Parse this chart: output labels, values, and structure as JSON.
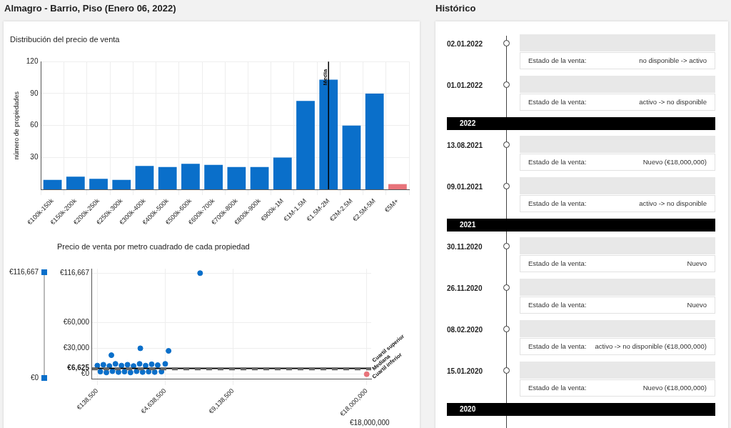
{
  "chart_data": [
    {
      "type": "bar",
      "title": "Distribución del precio de venta",
      "ylabel": "número de propiedades",
      "annotations": [
        "Almagro - Barrio, Piso (Enero 06, 2022)"
      ],
      "categories": [
        "€100k-150k",
        "€150k-200k",
        "€200k-250k",
        "€250k-300k",
        "€300k-400k",
        "€400k-500k",
        "€500k-600k",
        "€600k-700k",
        "€700k-800k",
        "€800k-900k",
        "€900k-1M",
        "€1M-1.5M",
        "€1.5M-2M",
        "€2M-2.5M",
        "€2.5M-5M",
        "€5M+"
      ],
      "values": [
        9,
        12,
        10,
        9,
        22,
        21,
        24,
        23,
        21,
        21,
        30,
        83,
        103,
        60,
        90,
        5
      ],
      "colors": [
        "#0a6fca",
        "#0a6fca",
        "#0a6fca",
        "#0a6fca",
        "#0a6fca",
        "#0a6fca",
        "#0a6fca",
        "#0a6fca",
        "#0a6fca",
        "#0a6fca",
        "#0a6fca",
        "#0a6fca",
        "#0a6fca",
        "#0a6fca",
        "#0a6fca",
        "#e8737a"
      ],
      "ylim": [
        0,
        120
      ],
      "yticks": [
        30,
        60,
        90,
        120
      ],
      "grid": true,
      "ref_lines": [
        {
          "axis": "x",
          "value": "€1.5M-2M",
          "label": "Media",
          "color": "#000000"
        }
      ]
    },
    {
      "type": "scatter",
      "title": "Precio de venta por metro cuadrado de cada propiedad",
      "annotations": [
        "€116,667",
        "€0",
        "€18,000,000"
      ],
      "xlim": [
        -200000,
        18300000
      ],
      "xticks": [
        {
          "value": 138500,
          "label": "€138,500"
        },
        {
          "value": 4638500,
          "label": "€4,638,500"
        },
        {
          "value": 9138500,
          "label": "€9,138,500"
        },
        {
          "value": 18000000,
          "label": "€18,000,000"
        }
      ],
      "ylim": [
        -6000,
        122000
      ],
      "yticks": [
        {
          "value": 0,
          "label": "€0"
        },
        {
          "value": 6625,
          "label": "€6,625"
        },
        {
          "value": 30000,
          "label": "€30,000"
        },
        {
          "value": 60000,
          "label": "€60,000"
        },
        {
          "value": 116667,
          "label": "€116,667"
        }
      ],
      "grid": true,
      "marker": "circle",
      "ref_lines": [
        {
          "axis": "y",
          "value": 7000,
          "label": "Cuartil superior",
          "color": "#333333",
          "line_style": "solid"
        },
        {
          "axis": "y",
          "value": 6625,
          "label": "Mediana",
          "color": "#000000",
          "line_style": "solid"
        },
        {
          "axis": "y",
          "value": 6200,
          "label": "Cuartil inferior",
          "color": "#666666",
          "line_style": "dashed"
        }
      ],
      "series": [
        {
          "color": "#0a6fca",
          "x": [
            150000,
            350000,
            550000,
            750000,
            950000,
            1150000,
            1350000,
            1550000,
            1750000,
            1950000,
            2150000,
            2350000,
            2550000,
            2750000,
            2950000,
            3150000,
            3350000,
            3550000,
            3750000,
            3950000,
            4150000,
            4400000,
            4650000,
            1080000,
            3000000,
            4870000,
            6960000
          ],
          "values": [
            10000,
            3000,
            11000,
            2000,
            9500,
            3500,
            12000,
            2500,
            10000,
            3000,
            11000,
            2000,
            9500,
            3500,
            12000,
            2500,
            10000,
            3000,
            11500,
            2500,
            10500,
            3000,
            12000,
            22000,
            30000,
            27000,
            117000
          ]
        },
        {
          "color": "#e8737a",
          "x": [
            18000000
          ],
          "values": [
            0
          ]
        }
      ]
    },
    {
      "type": "other",
      "title": "Histórico",
      "xlabel": "Estado de la venta:",
      "categories": [
        "02.01.2022",
        "01.01.2022",
        "2022",
        "13.08.2021",
        "09.01.2021",
        "2021",
        "30.11.2020",
        "26.11.2020",
        "08.02.2020",
        "15.01.2020",
        "2020"
      ],
      "value_labels": [
        "no disponible -> activo",
        "activo -> no disponible",
        null,
        "Nuevo (€18,000,000)",
        "activo -> no disponible",
        null,
        "Nuevo",
        "Nuevo",
        "activo -> no disponible (€18,000,000)",
        "Nuevo (€18,000,000)",
        null
      ]
    }
  ]
}
